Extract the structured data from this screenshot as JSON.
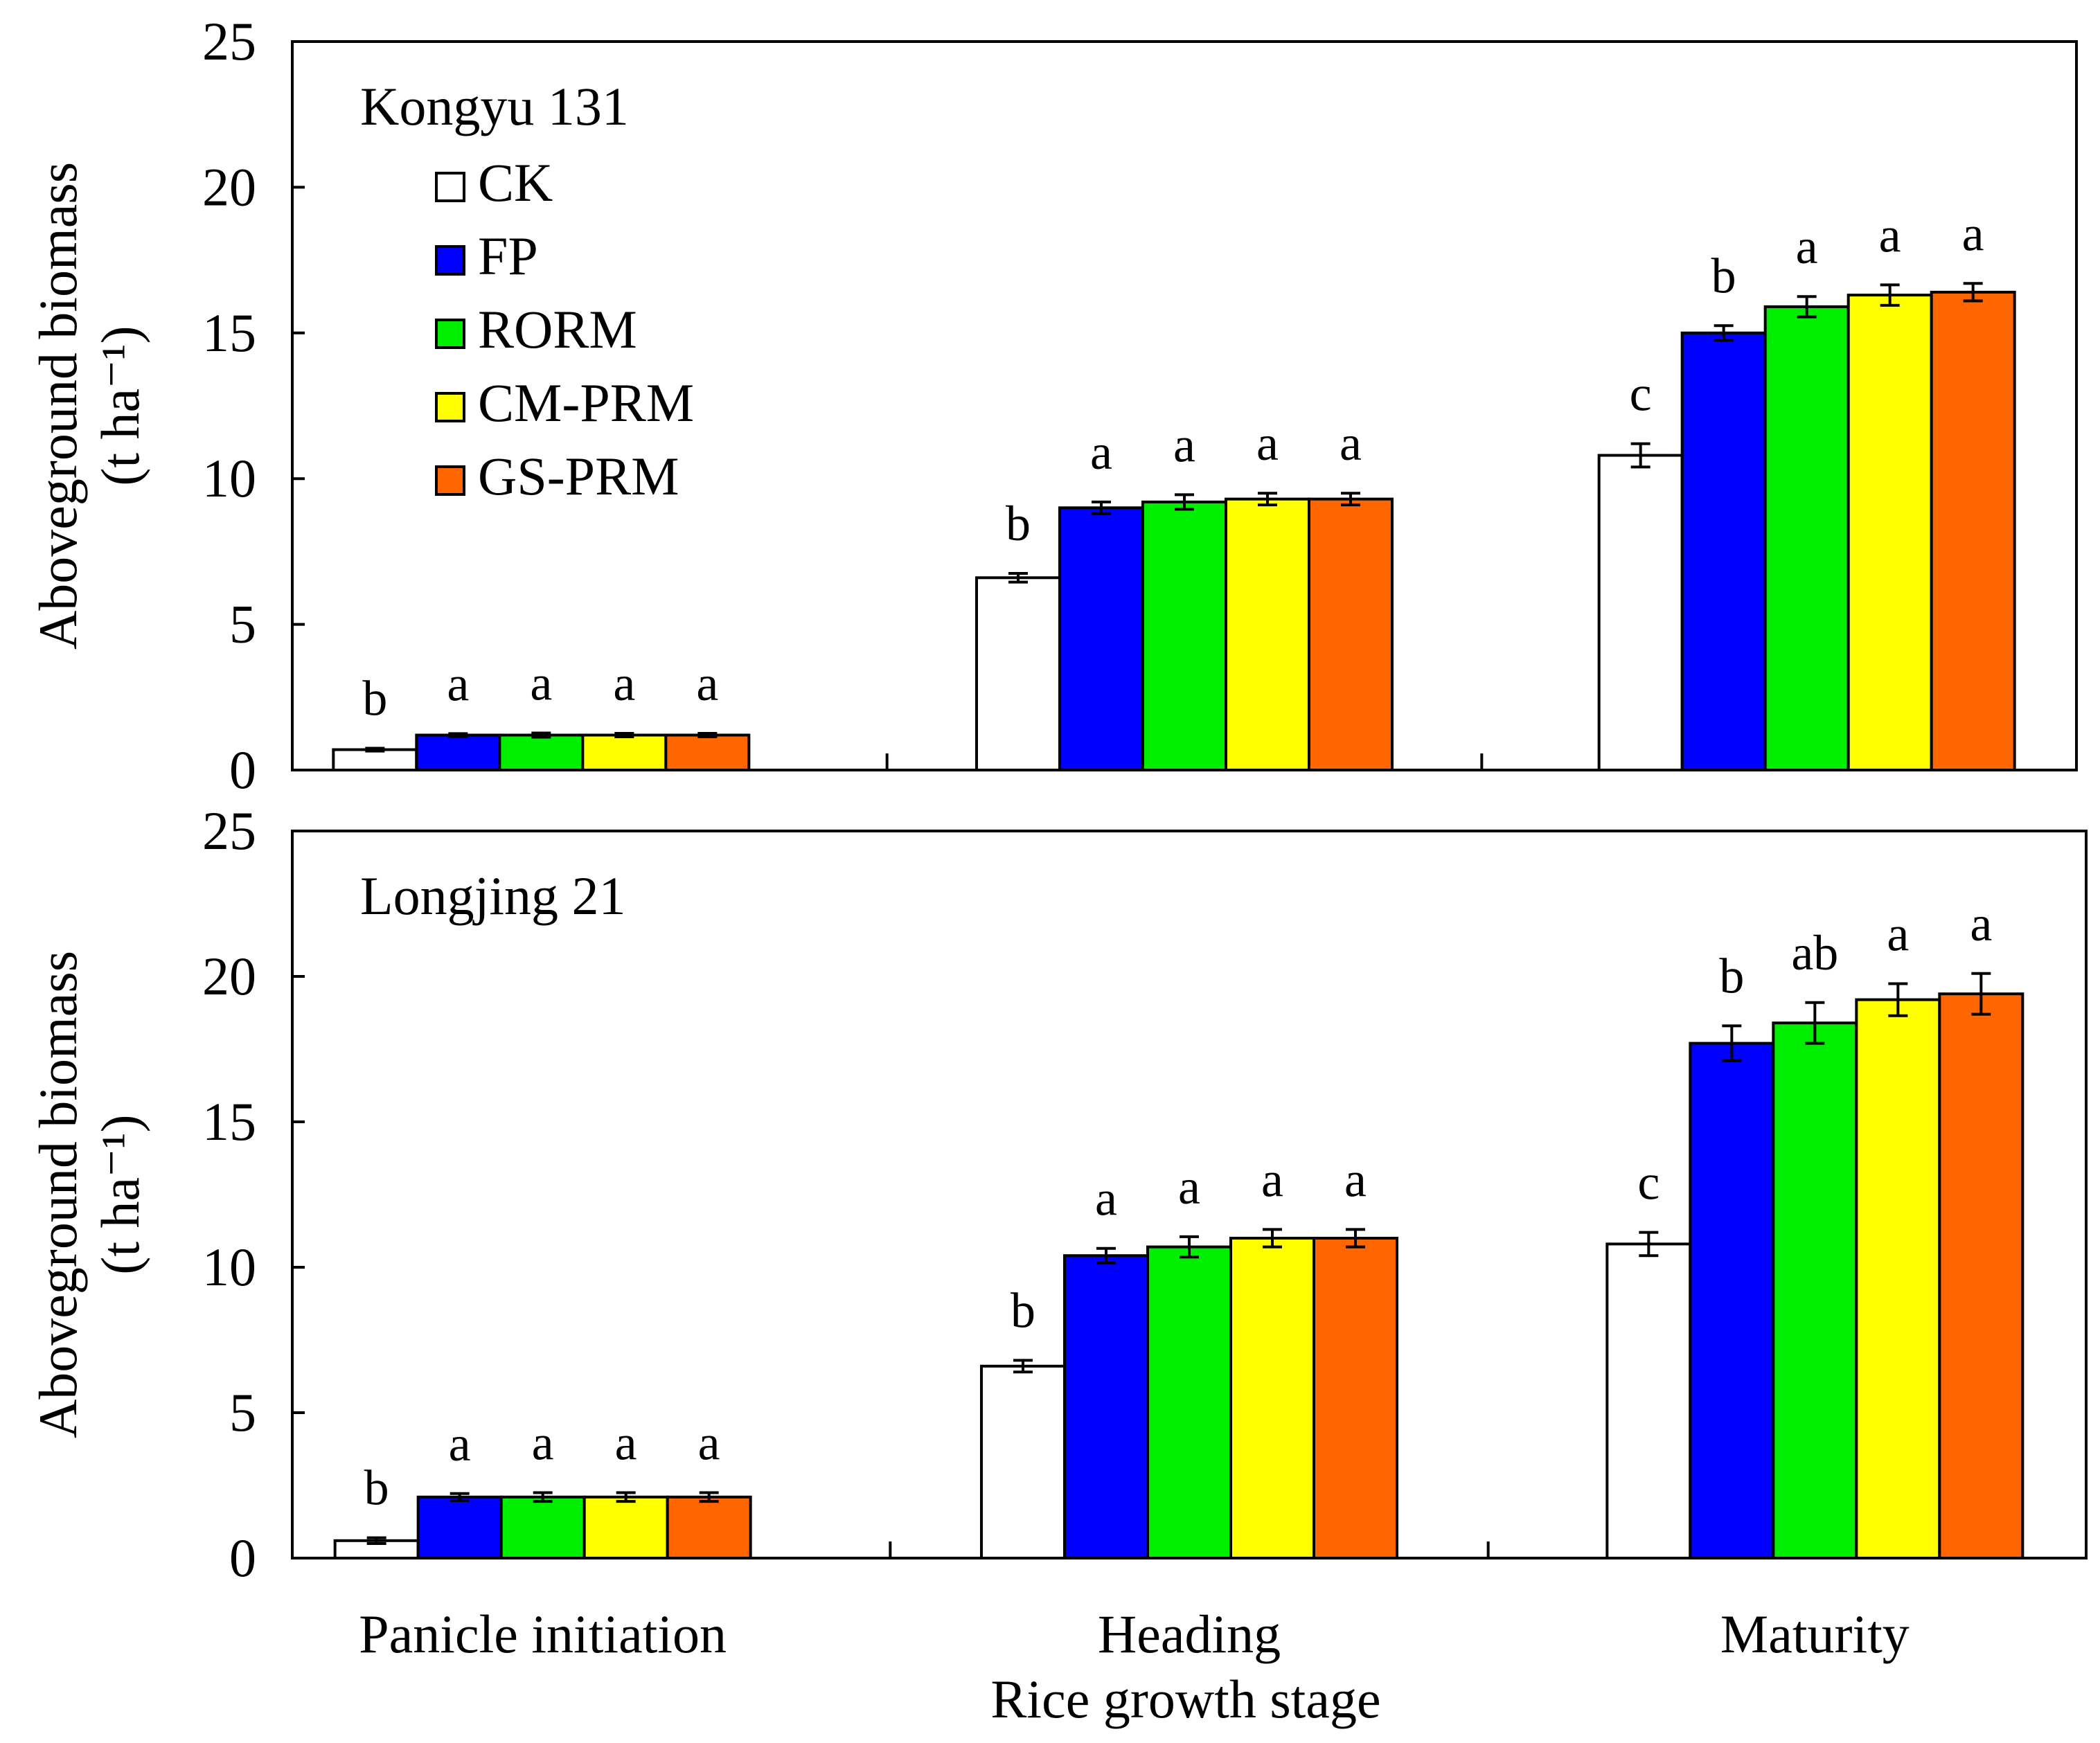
{
  "chart_data": [
    {
      "type": "bar",
      "title": "Kongyu 131",
      "xlabel": "",
      "ylabel": "Aboveground biomass",
      "ylabel_unit": "(t ha⁻¹)",
      "ylim": [
        0,
        25
      ],
      "yticks": [
        "0",
        "5",
        "10",
        "15",
        "20",
        "25"
      ],
      "categories": [
        "Panicle initiation",
        "Heading",
        "Maturity"
      ],
      "legend_position": "top-left",
      "series": [
        {
          "name": "CK",
          "color": "#ffffff",
          "values": [
            0.7,
            6.6,
            10.8
          ],
          "errors": [
            0.05,
            0.15,
            0.4
          ],
          "labels": [
            "b",
            "b",
            "c"
          ]
        },
        {
          "name": "FP",
          "color": "#0000ff",
          "values": [
            1.2,
            9.0,
            15.0
          ],
          "errors": [
            0.05,
            0.2,
            0.25
          ],
          "labels": [
            "a",
            "a",
            "b"
          ]
        },
        {
          "name": "RORM",
          "color": "#00ee00",
          "values": [
            1.2,
            9.2,
            15.9
          ],
          "errors": [
            0.07,
            0.25,
            0.35
          ],
          "labels": [
            "a",
            "a",
            "a"
          ]
        },
        {
          "name": "CM-PRM",
          "color": "#ffff00",
          "values": [
            1.2,
            9.3,
            16.3
          ],
          "errors": [
            0.06,
            0.2,
            0.35
          ],
          "labels": [
            "a",
            "a",
            "a"
          ]
        },
        {
          "name": "GS-PRM",
          "color": "#ff6600",
          "values": [
            1.2,
            9.3,
            16.4
          ],
          "errors": [
            0.06,
            0.2,
            0.3
          ],
          "labels": [
            "a",
            "a",
            "a"
          ]
        }
      ]
    },
    {
      "type": "bar",
      "title": "Longjing 21",
      "xlabel": "Rice growth stage",
      "ylabel": "Aboveground biomass",
      "ylabel_unit": "(t ha⁻¹)",
      "ylim": [
        0,
        25
      ],
      "yticks": [
        "0",
        "5",
        "10",
        "15",
        "20",
        "25"
      ],
      "categories": [
        "Panicle initiation",
        "Heading",
        "Maturity"
      ],
      "series": [
        {
          "name": "CK",
          "color": "#ffffff",
          "values": [
            0.6,
            6.6,
            10.8
          ],
          "errors": [
            0.1,
            0.2,
            0.4
          ],
          "labels": [
            "b",
            "b",
            "c"
          ]
        },
        {
          "name": "FP",
          "color": "#0000ff",
          "values": [
            2.1,
            10.4,
            17.7
          ],
          "errors": [
            0.12,
            0.25,
            0.6
          ],
          "labels": [
            "a",
            "a",
            "b"
          ]
        },
        {
          "name": "RORM",
          "color": "#00ee00",
          "values": [
            2.1,
            10.7,
            18.4
          ],
          "errors": [
            0.15,
            0.35,
            0.7
          ],
          "labels": [
            "a",
            "a",
            "ab"
          ]
        },
        {
          "name": "CM-PRM",
          "color": "#ffff00",
          "values": [
            2.1,
            11.0,
            19.2
          ],
          "errors": [
            0.15,
            0.3,
            0.55
          ],
          "labels": [
            "a",
            "a",
            "a"
          ]
        },
        {
          "name": "GS-PRM",
          "color": "#ff6600",
          "values": [
            2.1,
            11.0,
            19.4
          ],
          "errors": [
            0.15,
            0.3,
            0.7
          ],
          "labels": [
            "a",
            "a",
            "a"
          ]
        }
      ]
    }
  ]
}
